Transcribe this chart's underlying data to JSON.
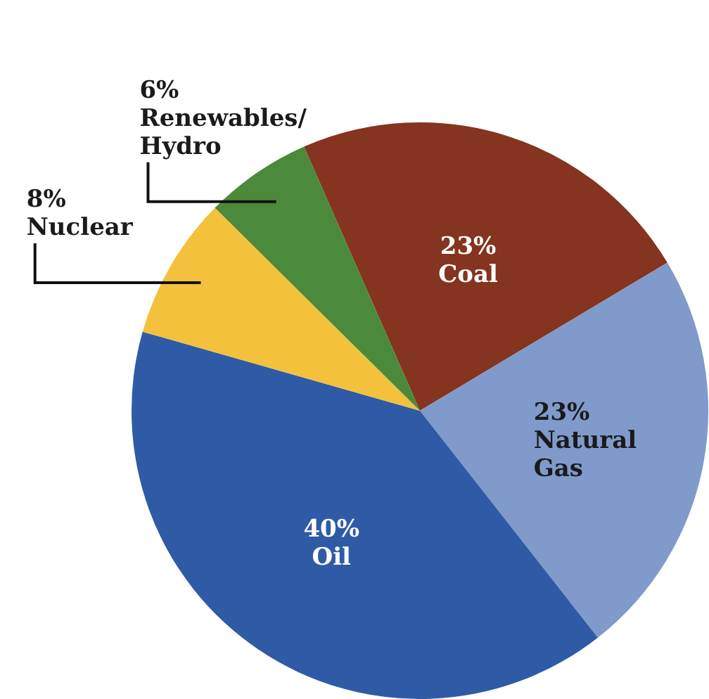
{
  "chart_data": {
    "type": "pie",
    "categories": [
      "Coal",
      "Natural Gas",
      "Oil",
      "Nuclear",
      "Renewables/Hydro"
    ],
    "values": [
      23,
      23,
      40,
      8,
      6
    ],
    "colors": [
      "#85341f",
      "#7f9acb",
      "#2f5ba6",
      "#f3c13b",
      "#4a8a3a"
    ],
    "value_labels": [
      "23%",
      "23%",
      "40%",
      "8%",
      "6%"
    ],
    "legend": false
  }
}
